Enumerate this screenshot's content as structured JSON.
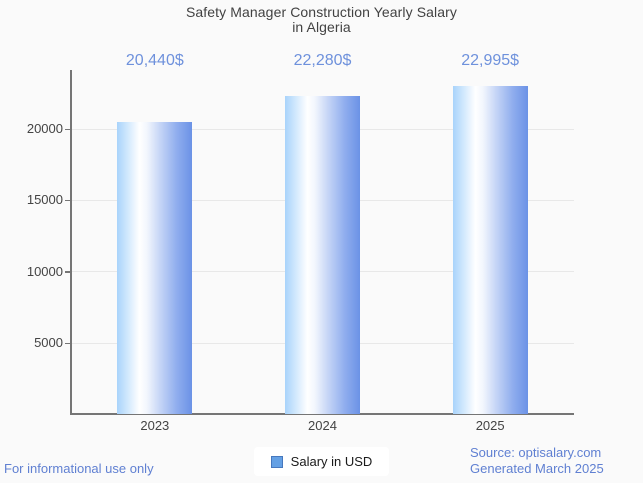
{
  "title": {
    "line1": "Safety Manager Construction Yearly Salary",
    "line2": "in Algeria"
  },
  "chart_data": {
    "type": "bar",
    "title": "Safety Manager Construction Yearly Salary in Algeria",
    "categories": [
      "2023",
      "2024",
      "2025"
    ],
    "series": [
      {
        "name": "Salary in USD",
        "values": [
          20440,
          22280,
          22995
        ]
      }
    ],
    "value_labels": [
      "20,440$",
      "22,280$",
      "22,995$"
    ],
    "xlabel": "",
    "ylabel": "",
    "y_ticks": [
      5000,
      10000,
      15000,
      20000
    ],
    "y_tick_labels": [
      "5000",
      "10000",
      "15000",
      "20000"
    ],
    "ylim": [
      0,
      24100
    ],
    "grid": true,
    "legend_position": "bottom"
  },
  "legend": {
    "label": "Salary in USD"
  },
  "footer": {
    "left_note": "For informational use only",
    "source": "Source: optisalary.com",
    "generated": "Generated March 2025"
  },
  "colors": {
    "background": "#fafafa",
    "title_text": "#424242",
    "axis_text": "#444444",
    "value_text": "#6e91dc",
    "footer_text": "#6080d2",
    "axis_line": "#757575",
    "gridline": "#e8e8e8",
    "bar_light": "#a8d3fb",
    "bar_dark": "#6b92e6",
    "legend_swatch": "#64a0e4",
    "legend_swatch_border": "#4678be",
    "legend_text": "#1a1a1a",
    "legend_bg": "#ffffff"
  }
}
